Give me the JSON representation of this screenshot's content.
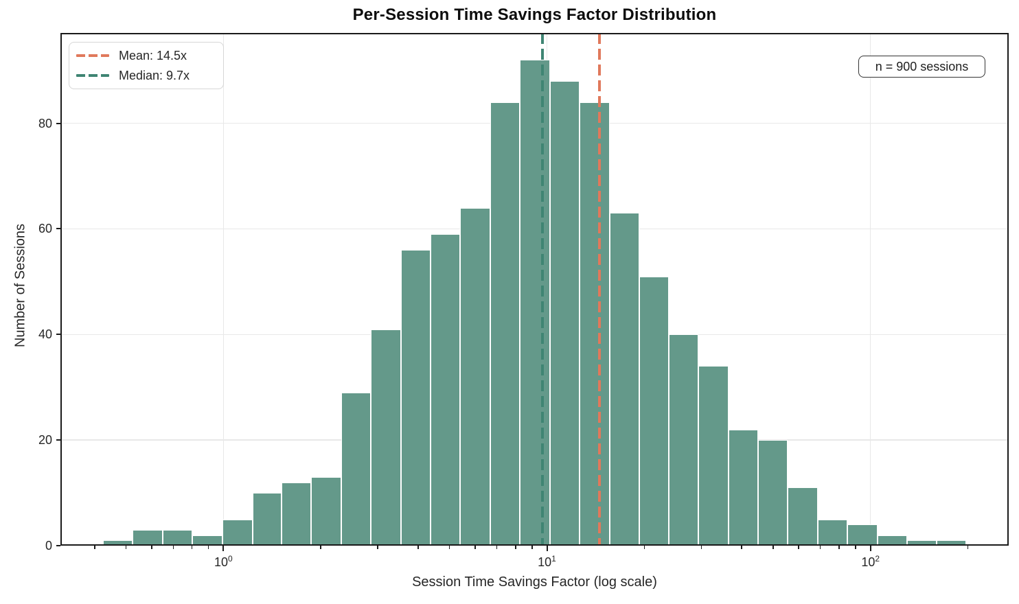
{
  "title": "Per-Session Time Savings Factor Distribution",
  "axes": {
    "xlabel": "Session Time Savings Factor (log scale)",
    "ylabel": "Number of Sessions"
  },
  "annotation": {
    "text": "n = 900 sessions"
  },
  "legend": {
    "items": [
      {
        "label": "Mean: 14.5x",
        "color": "#E0795C"
      },
      {
        "label": "Median: 9.7x",
        "color": "#3F8573"
      }
    ]
  },
  "colors": {
    "bar_fill": "#64998A",
    "bar_edge": "#FFFFFF",
    "mean_line": "#E0795C",
    "median_line": "#3F8573",
    "grid": "#E8E8E8",
    "axis": "#1A1A1A",
    "text": "#262626"
  },
  "chart_data": {
    "type": "bar",
    "subtype": "log-histogram",
    "title": "Per-Session Time Savings Factor Distribution",
    "xlabel": "Session Time Savings Factor (log scale)",
    "ylabel": "Number of Sessions",
    "n_sessions": 900,
    "mean": 14.5,
    "median": 9.7,
    "x_scale": "log",
    "grid": true,
    "legend_position": "upper left",
    "bin_edges": [
      0.425,
      0.525,
      0.649,
      0.802,
      0.992,
      1.23,
      1.51,
      1.87,
      2.31,
      2.86,
      3.54,
      4.37,
      5.4,
      6.68,
      8.25,
      10.2,
      12.6,
      15.6,
      19.3,
      23.8,
      29.4,
      36.4,
      44.9,
      55.5,
      68.7,
      84.9,
      105,
      130,
      160,
      198
    ],
    "counts": [
      1,
      3,
      3,
      2,
      5,
      10,
      12,
      13,
      29,
      41,
      56,
      59,
      64,
      84,
      92,
      88,
      84,
      63,
      51,
      40,
      34,
      22,
      20,
      11,
      5,
      4,
      2,
      1,
      1
    ],
    "xlim": [
      0.3136,
      267.4
    ],
    "ylim": [
      0,
      97.1
    ],
    "yticks": [
      0,
      20,
      40,
      60,
      80
    ],
    "xticks": [
      {
        "value": 1,
        "base": "10",
        "exp": "0"
      },
      {
        "value": 10,
        "base": "10",
        "exp": "1"
      },
      {
        "value": 100,
        "base": "10",
        "exp": "2"
      }
    ],
    "minor_xticks": [
      0.4,
      0.5,
      0.6,
      0.7,
      0.8,
      0.9,
      2,
      3,
      4,
      5,
      6,
      7,
      8,
      9,
      20,
      30,
      40,
      50,
      60,
      70,
      80,
      90,
      200
    ]
  }
}
